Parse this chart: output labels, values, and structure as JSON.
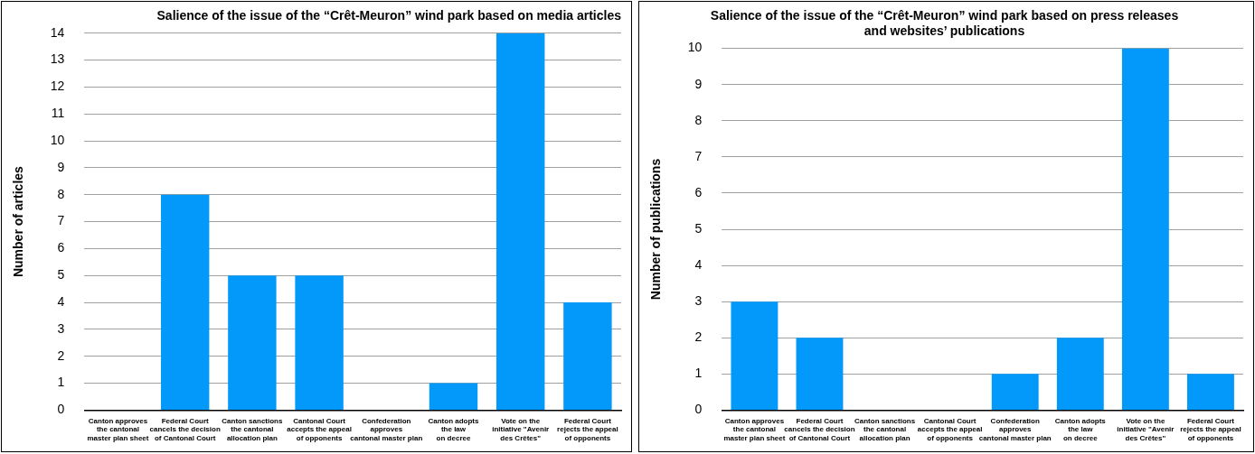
{
  "chart_data": [
    {
      "type": "bar",
      "title": "Salience of the issue of the “Crêt-Meuron” wind park based on media articles",
      "ylabel": "Number of articles",
      "categories": [
        "Canton approves\nthe cantonal\nmaster plan sheet",
        "Federal Court\ncancels the decision\nof Cantonal Court",
        "Canton sanctions\nthe cantonal\nallocation plan",
        "Cantonal Court\naccepts the appeal\nof opponents",
        "Confederation\napproves\ncantonal master plan",
        "Canton adopts\nthe law\non decree",
        "Vote on the\ninitiative \"Avenir\ndes Crêtes\"",
        "Federal Court\nrejects the appeal\nof opponents"
      ],
      "values": [
        0,
        8,
        5,
        5,
        0,
        1,
        14,
        4
      ],
      "color": "#0399fa",
      "ylim": [
        0,
        14
      ],
      "yticks": [
        0,
        1,
        2,
        3,
        4,
        5,
        6,
        7,
        8,
        9,
        10,
        11,
        12,
        13,
        14
      ],
      "grid": "y",
      "legend": false
    },
    {
      "type": "bar",
      "title": "Salience of the issue of the “Crêt-Meuron” wind park based on press releases\nand websites’ publications",
      "ylabel": "Number of publications",
      "categories": [
        "Canton approves\nthe cantonal\nmaster plan sheet",
        "Federal Court\ncancels the decision\nof Cantonal Court",
        "Canton sanctions\nthe cantonal\nallocation plan",
        "Cantonal Court\naccepts the appeal\nof opponents",
        "Confederation\napproves\ncantonal master plan",
        "Canton adopts\nthe law\non decree",
        "Vote on the\ninitiative \"Avenir\ndes Crêtes\"",
        "Federal Court\nrejects the appeal\nof opponents"
      ],
      "values": [
        3,
        2,
        0,
        0,
        1,
        2,
        10,
        1
      ],
      "color": "#0399fa",
      "ylim": [
        0,
        10
      ],
      "yticks": [
        0,
        1,
        2,
        3,
        4,
        5,
        6,
        7,
        8,
        9,
        10
      ],
      "grid": "y",
      "legend": false
    }
  ]
}
